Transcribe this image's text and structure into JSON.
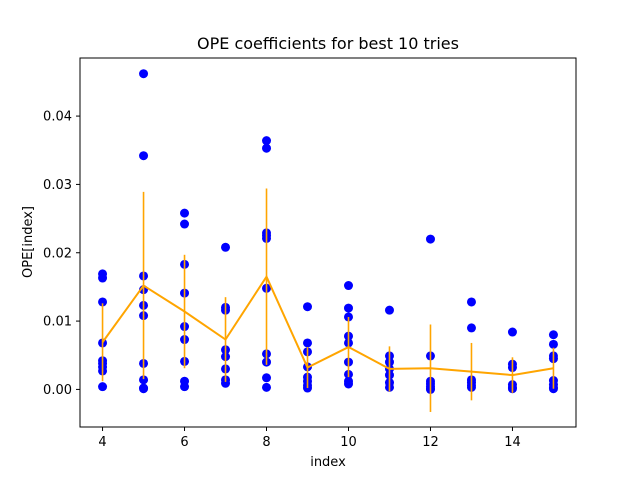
{
  "chart_data": {
    "type": "scatter",
    "title": "OPE coefficients for best 10 tries",
    "xlabel": "index",
    "ylabel": "OPE[index]",
    "xlim": [
      3.45,
      15.55
    ],
    "ylim": [
      -0.0055,
      0.0485
    ],
    "xticks": [
      4,
      6,
      8,
      10,
      12,
      14
    ],
    "yticks": [
      0.0,
      0.01,
      0.02,
      0.03,
      0.04
    ],
    "ytick_labels": [
      "0.00",
      "0.01",
      "0.02",
      "0.03",
      "0.04"
    ],
    "grid": false,
    "points_color": "#0000ff",
    "mean_color": "#ffa500",
    "points": [
      {
        "x": 4,
        "values": [
          0.0169,
          0.0163,
          0.0128,
          0.0068,
          0.0042,
          0.0038,
          0.0033,
          0.0027,
          0.0004
        ]
      },
      {
        "x": 5,
        "values": [
          0.0462,
          0.0342,
          0.0166,
          0.0146,
          0.0123,
          0.0108,
          0.0038,
          0.0014,
          0.0002,
          0.0001
        ]
      },
      {
        "x": 6,
        "values": [
          0.0258,
          0.0242,
          0.0183,
          0.0141,
          0.0092,
          0.0073,
          0.0041,
          0.0012,
          0.0004
        ]
      },
      {
        "x": 7,
        "values": [
          0.0208,
          0.012,
          0.0116,
          0.0058,
          0.0048,
          0.003,
          0.0014,
          0.0009
        ]
      },
      {
        "x": 8,
        "values": [
          0.0364,
          0.0353,
          0.0229,
          0.0225,
          0.0221,
          0.0148,
          0.0052,
          0.004,
          0.0017,
          0.0003
        ]
      },
      {
        "x": 9,
        "values": [
          0.0121,
          0.0068,
          0.0055,
          0.0033,
          0.0018,
          0.0012,
          0.0006,
          0.0002
        ]
      },
      {
        "x": 10,
        "values": [
          0.0152,
          0.0119,
          0.0106,
          0.0078,
          0.0068,
          0.004,
          0.0022,
          0.0012,
          0.0008
        ]
      },
      {
        "x": 11,
        "values": [
          0.0116,
          0.0049,
          0.004,
          0.003,
          0.0021,
          0.001,
          0.0003
        ]
      },
      {
        "x": 12,
        "values": [
          0.022,
          0.0049,
          0.0012,
          0.0008,
          0.0004,
          0.0001,
          0.0
        ]
      },
      {
        "x": 13,
        "values": [
          0.0128,
          0.009,
          0.0014,
          0.001,
          0.0006,
          0.0003
        ]
      },
      {
        "x": 14,
        "values": [
          0.0084,
          0.0037,
          0.0032,
          0.0007,
          0.0003,
          0.0001
        ]
      },
      {
        "x": 15,
        "values": [
          0.008,
          0.0066,
          0.0049,
          0.0045,
          0.0013,
          0.0007,
          0.0003,
          0.0001
        ]
      }
    ],
    "mean": {
      "x": [
        4,
        5,
        6,
        7,
        8,
        9,
        10,
        11,
        12,
        13,
        14,
        15
      ],
      "y": [
        0.0069,
        0.0152,
        0.0114,
        0.0073,
        0.0165,
        0.0032,
        0.0062,
        0.003,
        0.0031,
        0.0026,
        0.0021,
        0.0031
      ],
      "err": [
        0.0057,
        0.0137,
        0.0083,
        0.0062,
        0.0129,
        0.003,
        0.0044,
        0.0033,
        0.0064,
        0.0042,
        0.0026,
        0.003
      ]
    }
  }
}
